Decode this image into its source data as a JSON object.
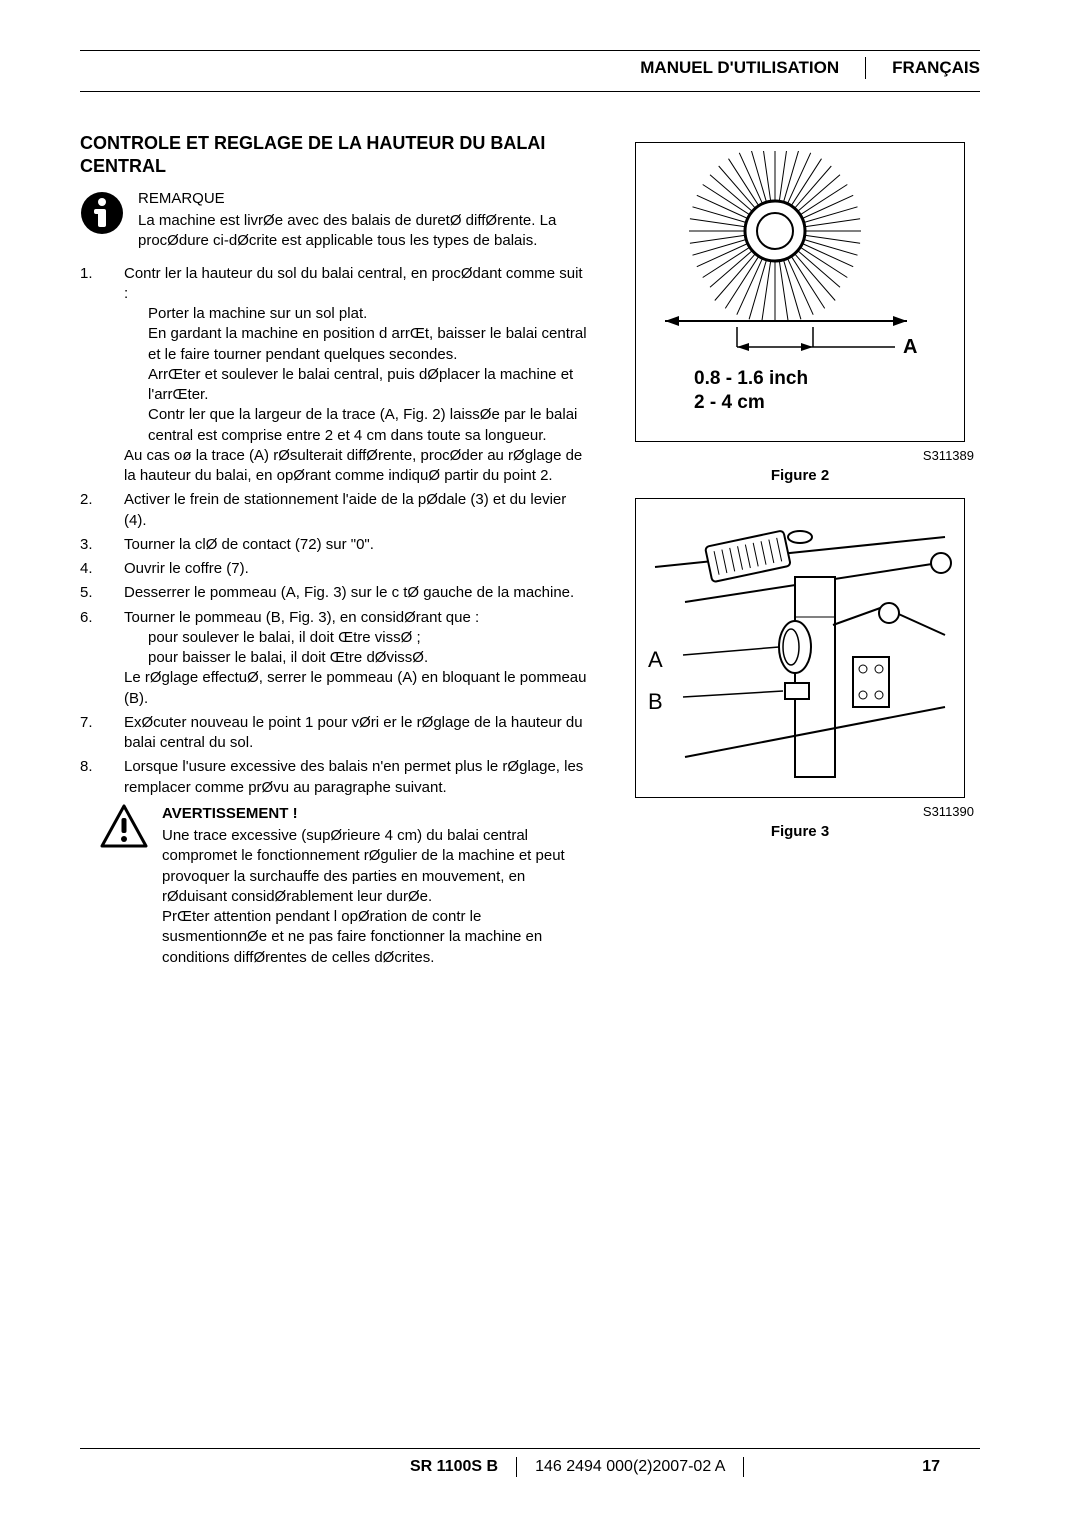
{
  "header": {
    "left_label": "MANUEL D'UTILISATION",
    "right_label": "FRANÇAIS"
  },
  "section_title": "CONTROLE ET REGLAGE DE LA HAUTEUR DU BALAI CENTRAL",
  "remark": {
    "head": "REMARQUE",
    "body": "La machine est livrØe avec des balais de duretØ diffØrente. La procØdure ci-dØcrite est applicable tous les types de balais."
  },
  "steps": {
    "s1_intro": "Contr ler la hauteur du sol du balai central, en procØdant comme suit :",
    "s1_a": "Porter la machine sur un sol plat.",
    "s1_b": "En gardant la machine en position d arrŒt, baisser le balai central et le faire tourner pendant quelques secondes.",
    "s1_c": "ArrŒter et soulever le balai central, puis dØplacer la machine et l'arrŒter.",
    "s1_d": "Contr ler que la largeur de la trace (A, Fig. 2) laissØe par le balai central est comprise entre 2 et 4 cm dans toute sa longueur.",
    "s1_tail": "Au cas oø la trace (A) rØsulterait diffØrente, procØder au rØglage de la hauteur du balai, en opØrant comme indiquØ  partir du point 2.",
    "s2": "Activer le frein de stationnement   l'aide de la pØdale (3) et du levier (4).",
    "s3": "Tourner la clØ de contact (72) sur \"0\".",
    "s4": "Ouvrir le coffre (7).",
    "s5": "Desserrer le pommeau (A, Fig. 3) sur le c tØ gauche de la machine.",
    "s6_intro": "Tourner le pommeau (B, Fig. 3), en considØrant que :",
    "s6_a": "pour soulever le balai, il doit Œtre vissØ ;",
    "s6_b": "pour baisser le balai, il doit Œtre dØvissØ.",
    "s6_tail": "Le rØglage effectuØ, serrer le pommeau (A) en bloquant le pommeau (B).",
    "s7": "ExØcuter   nouveau le point 1 pour vØri er le rØglage de la hauteur du balai central du sol.",
    "s8": "Lorsque l'usure excessive des balais n'en permet plus le rØglage, les remplacer comme prØvu au paragraphe suivant."
  },
  "warning": {
    "head": "AVERTISSEMENT !",
    "p1": "Une trace excessive (supØrieure   4 cm) du balai central compromet le fonctionnement rØgulier de la machine et peut provoquer la surchauffe des parties en mouvement, en rØduisant considØrablement leur durØe.",
    "p2": "PrŒter attention pendant l opØration de contr le susmentionnØe et ne pas faire fonctionner la machine en conditions diffØrentes de celles dØcrites."
  },
  "figure2": {
    "meas_line1": "0.8 - 1.6 inch",
    "meas_line2": "2 -  4 cm",
    "label_a": "A",
    "code": "S311389",
    "caption": "Figure 2",
    "brush_stroke": "#000000",
    "brush_center_r": 30,
    "spike_count": 44
  },
  "figure3": {
    "label_a": "A",
    "label_b": "B",
    "code": "S311390",
    "caption": "Figure 3"
  },
  "footer": {
    "model": "SR 1100S B",
    "doc": "146 2494 000(2)2007-02 A",
    "page": "17"
  },
  "colors": {
    "text": "#000000",
    "bg": "#ffffff",
    "rule": "#000000"
  }
}
